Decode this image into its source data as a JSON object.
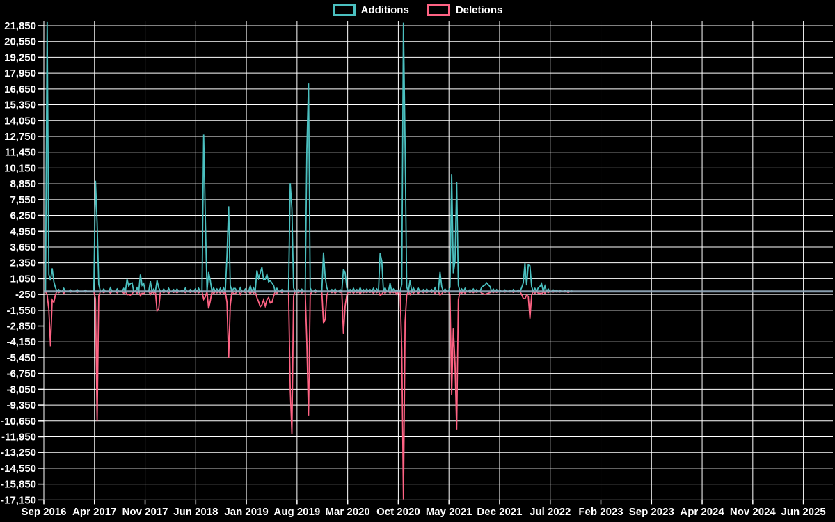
{
  "chart_data": {
    "type": "line",
    "title": "",
    "legend": [
      "Additions",
      "Deletions"
    ],
    "series_colors": {
      "additions": "#4bc0c0",
      "deletions": "#ff6384"
    },
    "background_color": "#000000",
    "grid_color": "#ffffff",
    "text_color": "#ffffff",
    "zero_line_color": "#93a9bc",
    "legend_position": "top",
    "grid": true,
    "ylim": [
      -17150,
      21850
    ],
    "y_tick_step": 1300,
    "y_tick_labels": [
      "21,850",
      "20,550",
      "19,250",
      "17,950",
      "16,650",
      "15,350",
      "14,050",
      "12,750",
      "11,450",
      "10,150",
      "8,850",
      "7,550",
      "6,250",
      "4,950",
      "3,650",
      "2,350",
      "1,050",
      "-250",
      "-1,550",
      "-2,850",
      "-4,150",
      "-5,450",
      "-6,750",
      "-8,050",
      "-9,350",
      "-10,650",
      "-11,950",
      "-13,250",
      "-14,550",
      "-15,850",
      "-17,150"
    ],
    "x_tick_labels": [
      "Sep 2016",
      "Apr 2017",
      "Nov 2017",
      "Jun 2018",
      "Jan 2019",
      "Aug 2019",
      "Mar 2020",
      "Oct 2020",
      "May 2021",
      "Dec 2021",
      "Jul 2022",
      "Feb 2023",
      "Sep 2023",
      "Apr 2024",
      "Nov 2024",
      "Jun 2025"
    ],
    "weeks_total": 475,
    "data_end_week": 318,
    "weekly_points_format": [
      "week_index",
      "additions",
      "deletions"
    ],
    "weekly_points": [
      [
        2,
        22200,
        -300
      ],
      [
        3,
        1400,
        -1500
      ],
      [
        4,
        900,
        -4500
      ],
      [
        5,
        1900,
        -700
      ],
      [
        6,
        800,
        -900
      ],
      [
        7,
        300,
        -250
      ],
      [
        9,
        150,
        -100
      ],
      [
        12,
        250,
        -150
      ],
      [
        16,
        120,
        -60
      ],
      [
        20,
        150,
        -80
      ],
      [
        25,
        100,
        -50
      ],
      [
        31,
        9100,
        -600
      ],
      [
        32,
        5600,
        -10650
      ],
      [
        33,
        600,
        -400
      ],
      [
        36,
        200,
        -100
      ],
      [
        40,
        300,
        -150
      ],
      [
        44,
        200,
        -120
      ],
      [
        48,
        250,
        -150
      ],
      [
        50,
        1020,
        -280
      ],
      [
        51,
        450,
        -250
      ],
      [
        52,
        650,
        -300
      ],
      [
        53,
        700,
        -200
      ],
      [
        56,
        300,
        -150
      ],
      [
        58,
        1400,
        -350
      ],
      [
        59,
        500,
        -150
      ],
      [
        60,
        650,
        -200
      ],
      [
        64,
        830,
        -250
      ],
      [
        66,
        200,
        -150
      ],
      [
        68,
        900,
        -1600
      ],
      [
        69,
        300,
        -1450
      ],
      [
        72,
        200,
        -100
      ],
      [
        75,
        250,
        -150
      ],
      [
        78,
        150,
        -80
      ],
      [
        80,
        200,
        -120
      ],
      [
        83,
        120,
        -60
      ],
      [
        85,
        280,
        -100
      ],
      [
        88,
        150,
        -80
      ],
      [
        91,
        200,
        -100
      ],
      [
        93,
        250,
        -120
      ],
      [
        96,
        12900,
        -650
      ],
      [
        97,
        6000,
        -450
      ],
      [
        99,
        1600,
        -1400
      ],
      [
        100,
        900,
        -800
      ],
      [
        102,
        300,
        -200
      ],
      [
        104,
        200,
        -120
      ],
      [
        106,
        250,
        -150
      ],
      [
        108,
        300,
        -180
      ],
      [
        110,
        2950,
        -900
      ],
      [
        111,
        7000,
        -5500
      ],
      [
        112,
        500,
        -1200
      ],
      [
        114,
        250,
        -180
      ],
      [
        115,
        250,
        -200
      ],
      [
        118,
        300,
        -250
      ],
      [
        121,
        200,
        -100
      ],
      [
        124,
        450,
        -200
      ],
      [
        126,
        300,
        -150
      ],
      [
        128,
        1730,
        -500
      ],
      [
        129,
        1100,
        -850
      ],
      [
        130,
        1500,
        -1250
      ],
      [
        131,
        2000,
        -1100
      ],
      [
        132,
        950,
        -700
      ],
      [
        133,
        1000,
        -1200
      ],
      [
        134,
        1400,
        -700
      ],
      [
        135,
        800,
        -500
      ],
      [
        136,
        870,
        -950
      ],
      [
        137,
        700,
        -900
      ],
      [
        138,
        500,
        -400
      ],
      [
        140,
        250,
        -150
      ],
      [
        143,
        150,
        -100
      ],
      [
        148,
        8900,
        -8000
      ],
      [
        149,
        6800,
        -11700
      ],
      [
        150,
        300,
        -400
      ],
      [
        153,
        150,
        -100
      ],
      [
        155,
        180,
        -120
      ],
      [
        158,
        11700,
        -4300
      ],
      [
        159,
        17150,
        -10200
      ],
      [
        160,
        300,
        -300
      ],
      [
        163,
        150,
        -100
      ],
      [
        168,
        3200,
        -2600
      ],
      [
        169,
        1200,
        -2300
      ],
      [
        170,
        300,
        -300
      ],
      [
        173,
        150,
        -100
      ],
      [
        175,
        200,
        -150
      ],
      [
        178,
        150,
        -100
      ],
      [
        180,
        1850,
        -3500
      ],
      [
        181,
        1530,
        -1200
      ],
      [
        182,
        300,
        -300
      ],
      [
        184,
        150,
        -100
      ],
      [
        186,
        250,
        -150
      ],
      [
        188,
        150,
        -100
      ],
      [
        190,
        300,
        -200
      ],
      [
        192,
        150,
        -100
      ],
      [
        194,
        200,
        -100
      ],
      [
        196,
        150,
        -80
      ],
      [
        198,
        250,
        -150
      ],
      [
        200,
        200,
        -100
      ],
      [
        202,
        3150,
        -300
      ],
      [
        203,
        2500,
        -250
      ],
      [
        205,
        300,
        -150
      ],
      [
        208,
        680,
        -150
      ],
      [
        210,
        200,
        -100
      ],
      [
        212,
        120,
        -260
      ],
      [
        215,
        600,
        -4800
      ],
      [
        216,
        22100,
        -17100
      ],
      [
        217,
        11750,
        -2500
      ],
      [
        218,
        350,
        -300
      ],
      [
        220,
        900,
        -250
      ],
      [
        222,
        300,
        -150
      ],
      [
        225,
        250,
        -150
      ],
      [
        228,
        150,
        -100
      ],
      [
        230,
        200,
        -100
      ],
      [
        233,
        150,
        -80
      ],
      [
        235,
        300,
        -150
      ],
      [
        238,
        1600,
        -300
      ],
      [
        239,
        400,
        -200
      ],
      [
        241,
        200,
        -100
      ],
      [
        244,
        350,
        -250
      ],
      [
        245,
        9650,
        -8500
      ],
      [
        246,
        1500,
        -3000
      ],
      [
        247,
        2500,
        -5900
      ],
      [
        248,
        9000,
        -11400
      ],
      [
        249,
        500,
        -700
      ],
      [
        251,
        200,
        -150
      ],
      [
        253,
        250,
        -150
      ],
      [
        256,
        150,
        -100
      ],
      [
        258,
        200,
        -100
      ],
      [
        260,
        150,
        -80
      ],
      [
        263,
        350,
        -150
      ],
      [
        264,
        450,
        -200
      ],
      [
        265,
        530,
        -250
      ],
      [
        266,
        700,
        -200
      ],
      [
        267,
        550,
        -150
      ],
      [
        268,
        400,
        -100
      ],
      [
        270,
        200,
        -100
      ],
      [
        272,
        150,
        -80
      ],
      [
        274,
        100,
        -60
      ],
      [
        277,
        120,
        -60
      ],
      [
        280,
        100,
        -50
      ],
      [
        282,
        150,
        -80
      ],
      [
        285,
        120,
        -60
      ],
      [
        287,
        300,
        -250
      ],
      [
        288,
        700,
        -570
      ],
      [
        289,
        2340,
        -600
      ],
      [
        290,
        500,
        -300
      ],
      [
        291,
        2170,
        -400
      ],
      [
        292,
        2100,
        -2230
      ],
      [
        293,
        400,
        -300
      ],
      [
        295,
        250,
        -150
      ],
      [
        297,
        300,
        -150
      ],
      [
        298,
        400,
        -150
      ],
      [
        299,
        640,
        -220
      ],
      [
        301,
        440,
        -150
      ],
      [
        303,
        200,
        -100
      ],
      [
        306,
        120,
        -60
      ],
      [
        308,
        100,
        -50
      ],
      [
        310,
        100,
        -50
      ],
      [
        313,
        80,
        -40
      ],
      [
        315,
        60,
        -100
      ],
      [
        317,
        40,
        -30
      ]
    ]
  }
}
